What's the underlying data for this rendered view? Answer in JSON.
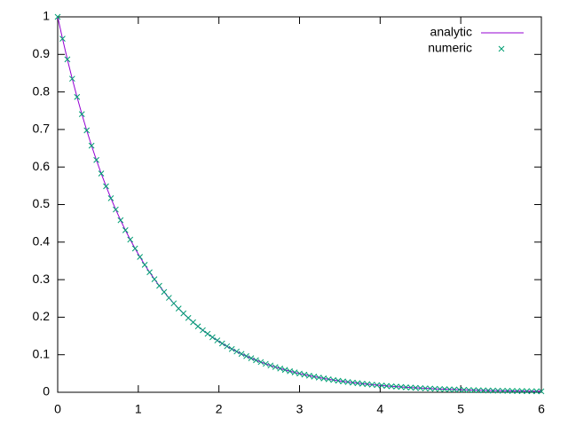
{
  "chart_data": {
    "type": "line",
    "x": [
      0,
      0.06,
      0.12,
      0.18,
      0.24,
      0.3,
      0.36,
      0.42,
      0.48,
      0.54,
      0.6,
      0.66,
      0.72,
      0.78,
      0.84,
      0.9,
      0.96,
      1.02,
      1.08,
      1.14,
      1.2,
      1.26,
      1.32,
      1.38,
      1.44,
      1.5,
      1.56,
      1.62,
      1.68,
      1.74,
      1.8,
      1.86,
      1.92,
      1.98,
      2.04,
      2.1,
      2.16,
      2.22,
      2.28,
      2.34,
      2.4,
      2.46,
      2.52,
      2.58,
      2.64,
      2.7,
      2.76,
      2.82,
      2.88,
      2.94,
      3,
      3.06,
      3.12,
      3.18,
      3.24,
      3.3,
      3.36,
      3.42,
      3.48,
      3.54,
      3.6,
      3.66,
      3.72,
      3.78,
      3.84,
      3.9,
      3.96,
      4.02,
      4.08,
      4.14,
      4.2,
      4.26,
      4.32,
      4.38,
      4.44,
      4.5,
      4.56,
      4.62,
      4.68,
      4.74,
      4.8,
      4.86,
      4.92,
      4.98,
      5.04,
      5.1,
      5.16,
      5.22,
      5.28,
      5.34,
      5.4,
      5.46,
      5.52,
      5.58,
      5.64,
      5.7,
      5.76,
      5.82,
      5.88,
      5.94,
      6
    ],
    "series": [
      {
        "name": "analytic",
        "color": "#9400d3",
        "style": "line",
        "values": [
          1,
          0.9418,
          0.8869,
          0.8353,
          0.7866,
          0.7408,
          0.6977,
          0.657,
          0.6188,
          0.5827,
          0.5488,
          0.5169,
          0.4868,
          0.4584,
          0.4317,
          0.4066,
          0.3829,
          0.3606,
          0.3396,
          0.3198,
          0.3012,
          0.2837,
          0.2671,
          0.2516,
          0.2369,
          0.2231,
          0.2101,
          0.1979,
          0.1864,
          0.1755,
          0.1653,
          0.1557,
          0.1466,
          0.1381,
          0.13,
          0.1225,
          0.1153,
          0.1086,
          0.1023,
          0.0963,
          0.0907,
          0.0854,
          0.0805,
          0.0758,
          0.0714,
          0.0672,
          0.0633,
          0.0596,
          0.0561,
          0.0529,
          0.0498,
          0.0469,
          0.0442,
          0.0416,
          0.0392,
          0.0369,
          0.0347,
          0.0327,
          0.0308,
          0.029,
          0.0273,
          0.0257,
          0.0242,
          0.0228,
          0.0215,
          0.0202,
          0.0191,
          0.018,
          0.0169,
          0.0159,
          0.015,
          0.0141,
          0.0133,
          0.0125,
          0.0118,
          0.0111,
          0.0105,
          0.0099,
          0.0093,
          0.0087,
          0.0082,
          0.0077,
          0.0073,
          0.0069,
          0.0065,
          0.0061,
          0.0057,
          0.0054,
          0.0051,
          0.0048,
          0.0045,
          0.0043,
          0.004,
          0.0038,
          0.0036,
          0.0033,
          0.0032,
          0.003,
          0.0028,
          0.0026,
          0.0025
        ]
      },
      {
        "name": "numeric",
        "color": "#009e73",
        "style": "points",
        "values": [
          1,
          0.9418,
          0.8869,
          0.8353,
          0.7866,
          0.7408,
          0.6977,
          0.657,
          0.6188,
          0.5827,
          0.5488,
          0.5169,
          0.4868,
          0.4584,
          0.4317,
          0.4066,
          0.3829,
          0.3606,
          0.3396,
          0.3198,
          0.3012,
          0.2837,
          0.2671,
          0.2516,
          0.2369,
          0.2231,
          0.2101,
          0.1979,
          0.1864,
          0.1755,
          0.1653,
          0.1557,
          0.1466,
          0.1381,
          0.13,
          0.1225,
          0.1153,
          0.1086,
          0.1023,
          0.0963,
          0.0907,
          0.0854,
          0.0805,
          0.0758,
          0.0714,
          0.0672,
          0.0633,
          0.0596,
          0.0561,
          0.0529,
          0.0498,
          0.0469,
          0.0442,
          0.0416,
          0.0392,
          0.0369,
          0.0347,
          0.0327,
          0.0308,
          0.029,
          0.0273,
          0.0257,
          0.0242,
          0.0228,
          0.0215,
          0.0202,
          0.0191,
          0.018,
          0.0169,
          0.0159,
          0.015,
          0.0141,
          0.0133,
          0.0125,
          0.0118,
          0.0111,
          0.0105,
          0.0099,
          0.0093,
          0.0087,
          0.0082,
          0.0077,
          0.0073,
          0.0069,
          0.0065,
          0.0061,
          0.0057,
          0.0054,
          0.0051,
          0.0048,
          0.0045,
          0.0043,
          0.004,
          0.0038,
          0.0036,
          0.0033,
          0.0032,
          0.003,
          0.0028,
          0.0026,
          0.0025
        ]
      }
    ],
    "xlim": [
      0,
      6
    ],
    "xticks": [
      0,
      1,
      2,
      3,
      4,
      5,
      6
    ],
    "ylim": [
      0,
      1
    ],
    "yticks": [
      0,
      0.1,
      0.2,
      0.3,
      0.4,
      0.5,
      0.6,
      0.7,
      0.8,
      0.9,
      1
    ],
    "legend": "top-right",
    "grid": false
  }
}
